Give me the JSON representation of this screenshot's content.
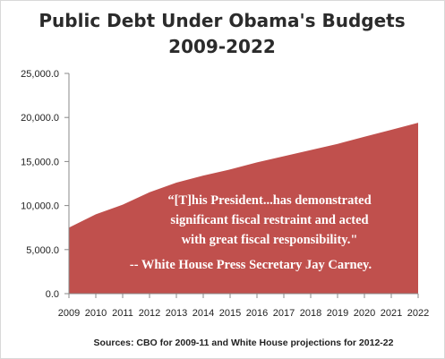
{
  "chart_data": {
    "type": "area",
    "title": "Public Debt Under Obama's Budgets",
    "subtitle": "2009-2022",
    "x": [
      "2009",
      "2010",
      "2011",
      "2012",
      "2013",
      "2014",
      "2015",
      "2016",
      "2017",
      "2018",
      "2019",
      "2020",
      "2021",
      "2022"
    ],
    "series": [
      {
        "values": [
          7500,
          9000,
          10100,
          11500,
          12600,
          13400,
          14100,
          14900,
          15600,
          16300,
          17000,
          17800,
          18600,
          19400
        ],
        "color": "#c0504d"
      }
    ],
    "ylim": [
      0,
      25000
    ],
    "yticks": [
      "0.0",
      "5,000.0",
      "10,000.0",
      "15,000.0",
      "20,000.0",
      "25,000.0"
    ],
    "grid": false,
    "annotation": [
      "“[T]his President...has demonstrated",
      "significant fiscal restraint and acted",
      "with great fiscal responsibility.\"",
      "-- White House Press Secretary Jay Carney."
    ],
    "source": "Sources: CBO for 2009-11 and White House projections for 2012-22"
  }
}
